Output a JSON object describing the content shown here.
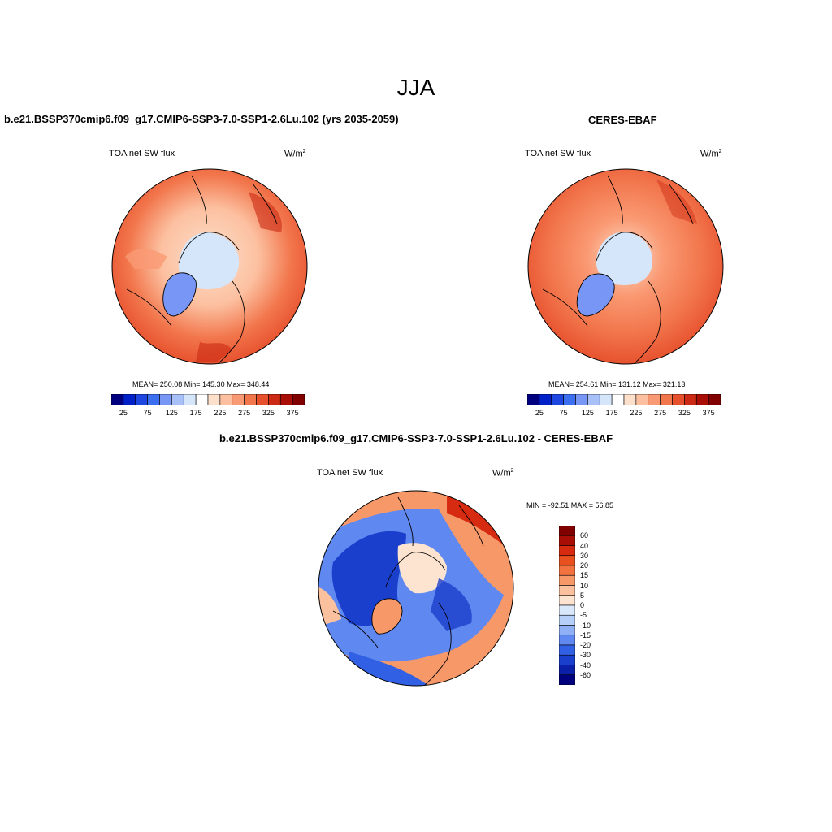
{
  "figure": {
    "season": "JJA",
    "variable": "TOA net SW flux",
    "unit_base": "W/m",
    "unit_exp": "2"
  },
  "panels": {
    "model": {
      "title": "b.e21.BSSP370cmip6.f09_g17.CMIP6-SSP3-7.0-SSP1-2.6Lu.102 (yrs 2035-2059)",
      "stats": "MEAN= 250.08  Min= 145.30  Max= 348.44"
    },
    "obs": {
      "title": "CERES-EBAF",
      "stats": "MEAN= 254.61  Min= 131.12  Max= 321.13"
    },
    "diff": {
      "title": "b.e21.BSSP370cmip6.f09_g17.CMIP6-SSP3-7.0-SSP1-2.6Lu.102 - CERES-EBAF",
      "minmax": "MIN = -92.51 MAX =  56.85"
    }
  },
  "colorbar_abs": {
    "labels": [
      "25",
      "75",
      "125",
      "175",
      "225",
      "275",
      "325",
      "375"
    ],
    "colors": [
      "#00007f",
      "#0020c8",
      "#1e46e0",
      "#3c6ef0",
      "#7896f5",
      "#a7c0f8",
      "#d6e6fa",
      "#ffffff",
      "#fde0cc",
      "#fcc0a0",
      "#fa9a74",
      "#f2764c",
      "#e6502d",
      "#cc2a14",
      "#a80e05",
      "#800000"
    ]
  },
  "colorbar_diff": {
    "labels": [
      "60",
      "40",
      "30",
      "20",
      "15",
      "10",
      "5",
      "0",
      "-5",
      "-10",
      "-15",
      "-20",
      "-30",
      "-40",
      "-60"
    ],
    "colors": [
      "#800000",
      "#a80e05",
      "#d62b10",
      "#e8501f",
      "#f27240",
      "#f79868",
      "#fbc09e",
      "#fde4d0",
      "#d9e8fb",
      "#b6cff8",
      "#8fb0f5",
      "#5f88f0",
      "#3260e4",
      "#1a3fcc",
      "#0b1fa8",
      "#00007f"
    ]
  },
  "maps": {
    "land_color": "#f27a4a",
    "ocean_color": "#e05a30",
    "ice_color": "#d6e6fa",
    "greenland_color": "#7896f5",
    "diff_neg_color": "#1a3fcc",
    "diff_pos_color": "#e8501f"
  }
}
